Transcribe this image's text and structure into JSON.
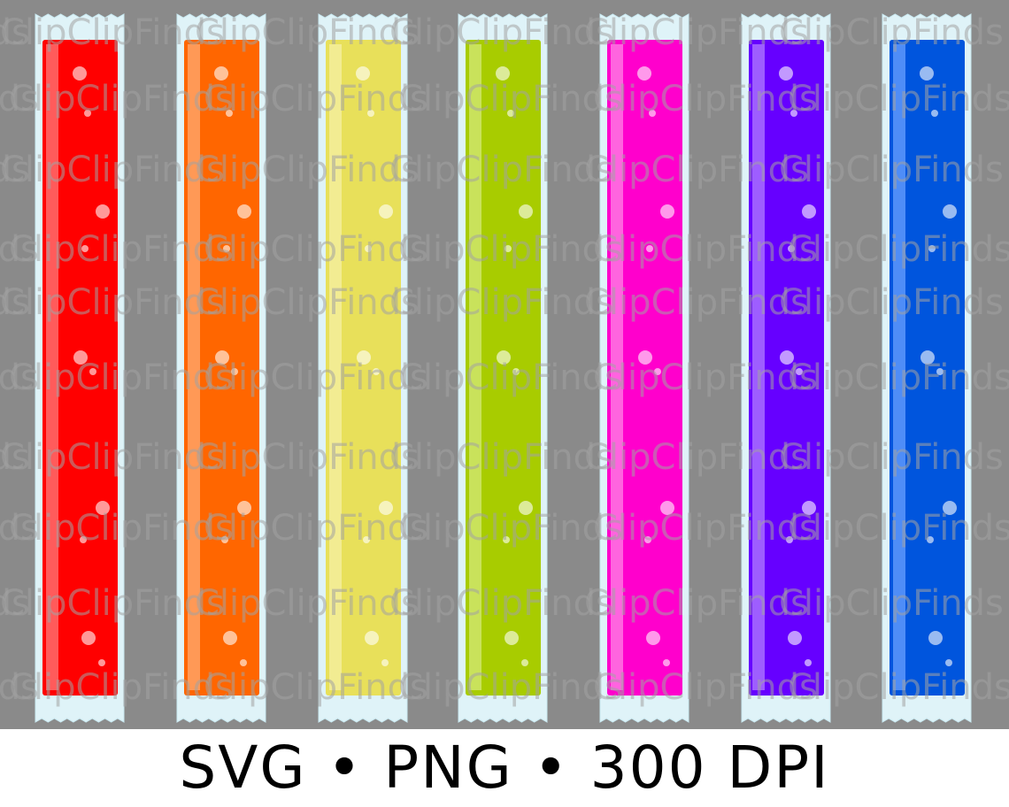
{
  "caption": "SVG • PNG • 300 DPI",
  "watermark": "ClipClipFinds"
}
